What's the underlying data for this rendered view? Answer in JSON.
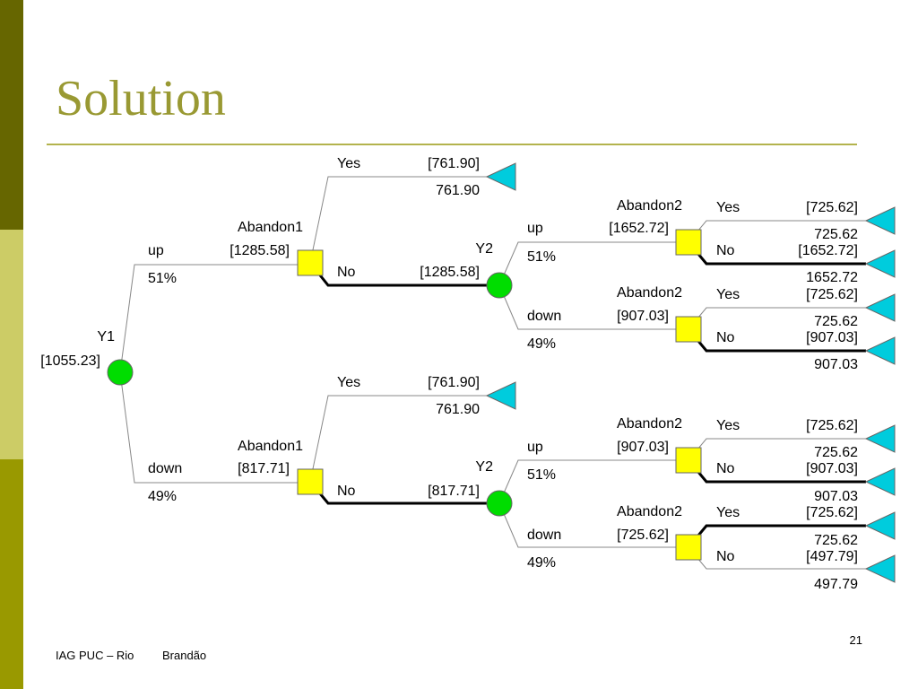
{
  "slide": {
    "title": "Solution",
    "footer_left": "IAG PUC – Rio",
    "footer_author": "Brandão",
    "page_number": "21",
    "colors": {
      "title": "#999933",
      "rule": "#b3b34d",
      "bar_dark": "#666600",
      "bar_light": "#cccc66",
      "bar_mid": "#999900",
      "decision_node": "#ffff00",
      "chance_node": "#00dd00",
      "terminal_node": "#00ccdd"
    }
  },
  "tree": {
    "root": {
      "label": "Y1",
      "value": "[1055.23]"
    },
    "y1_branches": [
      {
        "label": "up",
        "prob": "51%",
        "decision": {
          "label": "Abandon1",
          "value": "[1285.58]"
        },
        "yes": {
          "label": "Yes",
          "value": "[761.90]",
          "payoff": "761.90"
        },
        "no": {
          "label": "No",
          "value": "[1285.58]",
          "chance": {
            "label": "Y2"
          },
          "y2_branches": [
            {
              "label": "up",
              "value": "[1652.72]",
              "prob": "51%",
              "decision": "Abandon2",
              "yes": {
                "label": "Yes",
                "value": "[725.62]",
                "payoff": "725.62"
              },
              "no": {
                "label": "No",
                "value": "[1652.72]",
                "payoff": "1652.72"
              }
            },
            {
              "label": "down",
              "value": "[907.03]",
              "prob": "49%",
              "decision": "Abandon2",
              "yes": {
                "label": "Yes",
                "value": "[725.62]",
                "payoff": "725.62"
              },
              "no": {
                "label": "No",
                "value": "[907.03]",
                "payoff": "907.03"
              }
            }
          ]
        }
      },
      {
        "label": "down",
        "prob": "49%",
        "decision": {
          "label": "Abandon1",
          "value": "[817.71]"
        },
        "yes": {
          "label": "Yes",
          "value": "[761.90]",
          "payoff": "761.90"
        },
        "no": {
          "label": "No",
          "value": "[817.71]",
          "chance": {
            "label": "Y2"
          },
          "y2_branches": [
            {
              "label": "up",
              "value": "[907.03]",
              "prob": "51%",
              "decision": "Abandon2",
              "yes": {
                "label": "Yes",
                "value": "[725.62]",
                "payoff": "725.62"
              },
              "no": {
                "label": "No",
                "value": "[907.03]",
                "payoff": "907.03"
              }
            },
            {
              "label": "down",
              "value": "[725.62]",
              "prob": "49%",
              "decision": "Abandon2",
              "yes": {
                "label": "Yes",
                "value": "[725.62]",
                "payoff": "725.62"
              },
              "no": {
                "label": "No",
                "value": "[497.79]",
                "payoff": "497.79"
              }
            }
          ]
        }
      }
    ]
  }
}
